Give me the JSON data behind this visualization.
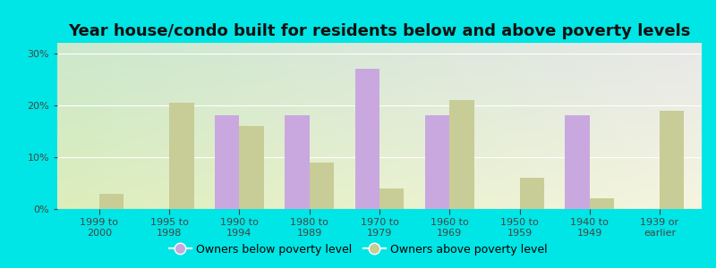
{
  "title": "Year house/condo built for residents below and above poverty levels",
  "categories": [
    "1999 to\n2000",
    "1995 to\n1998",
    "1990 to\n1994",
    "1980 to\n1989",
    "1970 to\n1979",
    "1960 to\n1969",
    "1950 to\n1959",
    "1940 to\n1949",
    "1939 or\nearlier"
  ],
  "below_poverty": [
    0,
    0,
    18,
    18,
    27,
    18,
    0,
    18,
    0
  ],
  "above_poverty": [
    3,
    20.5,
    16,
    9,
    4,
    21,
    6,
    2,
    19
  ],
  "below_color": "#c9a8e0",
  "above_color": "#c8cc96",
  "background_outer": "#00e5e5",
  "bg_top_left": "#d4edda",
  "bg_top_right": "#f0f0e8",
  "bg_bottom_left": "#e8f5d0",
  "bg_bottom_right": "#f8f8e8",
  "ylim": [
    0,
    32
  ],
  "yticks": [
    0,
    10,
    20,
    30
  ],
  "ytick_labels": [
    "0%",
    "10%",
    "20%",
    "30%"
  ],
  "legend_below": "Owners below poverty level",
  "legend_above": "Owners above poverty level",
  "title_fontsize": 13,
  "tick_fontsize": 8,
  "legend_fontsize": 9,
  "bar_width": 0.35,
  "text_color": "#444444"
}
